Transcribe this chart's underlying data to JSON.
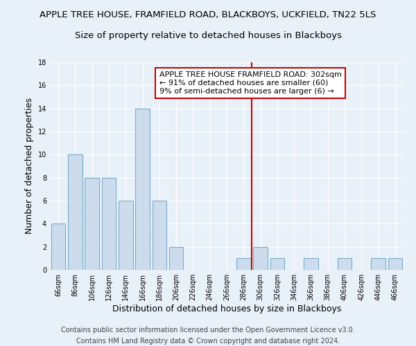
{
  "title": "APPLE TREE HOUSE, FRAMFIELD ROAD, BLACKBOYS, UCKFIELD, TN22 5LS",
  "subtitle": "Size of property relative to detached houses in Blackboys",
  "xlabel": "Distribution of detached houses by size in Blackboys",
  "ylabel": "Number of detached properties",
  "bar_labels": [
    "66sqm",
    "86sqm",
    "106sqm",
    "126sqm",
    "146sqm",
    "166sqm",
    "186sqm",
    "206sqm",
    "226sqm",
    "246sqm",
    "266sqm",
    "286sqm",
    "306sqm",
    "326sqm",
    "346sqm",
    "366sqm",
    "386sqm",
    "406sqm",
    "426sqm",
    "446sqm",
    "466sqm"
  ],
  "bar_values": [
    4,
    10,
    8,
    8,
    6,
    14,
    6,
    2,
    0,
    0,
    0,
    1,
    2,
    1,
    0,
    1,
    0,
    1,
    0,
    1,
    1
  ],
  "bar_color": "#ccdcec",
  "bar_edge_color": "#7aabcc",
  "ylim": [
    0,
    18
  ],
  "yticks": [
    0,
    2,
    4,
    6,
    8,
    10,
    12,
    14,
    16,
    18
  ],
  "red_line_index": 11.5,
  "annotation_line1": "APPLE TREE HOUSE FRAMFIELD ROAD: 302sqm",
  "annotation_line2": "← 91% of detached houses are smaller (60)",
  "annotation_line3": "9% of semi-detached houses are larger (6) →",
  "annotation_box_color": "#ffffff",
  "annotation_box_edge": "#cc0000",
  "footer_line1": "Contains HM Land Registry data © Crown copyright and database right 2024.",
  "footer_line2": "Contains public sector information licensed under the Open Government Licence v3.0.",
  "background_color": "#e8f0f8",
  "grid_color": "#ffffff",
  "title_fontsize": 9.5,
  "subtitle_fontsize": 9.5,
  "axis_label_fontsize": 9,
  "tick_fontsize": 7,
  "annotation_fontsize": 8,
  "footer_fontsize": 7
}
